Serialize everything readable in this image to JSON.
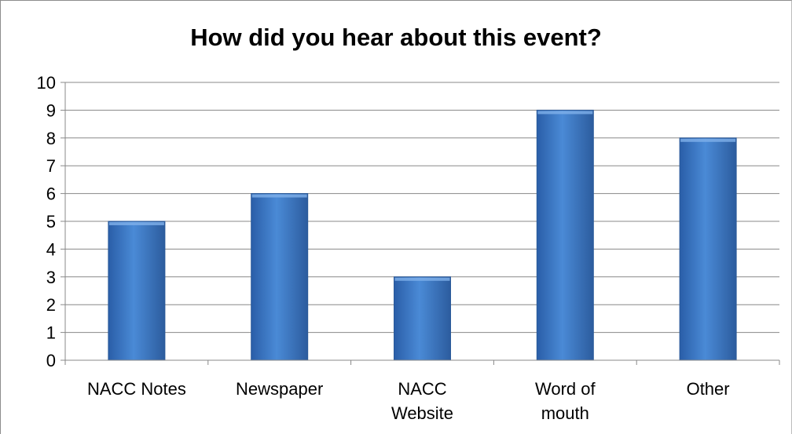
{
  "chart_data": {
    "type": "bar",
    "title": "How did you hear about this event?",
    "categories": [
      "NACC Notes",
      "Newspaper",
      "NACC Website",
      "Word of mouth",
      "Other"
    ],
    "category_lines": [
      [
        "NACC Notes"
      ],
      [
        "Newspaper"
      ],
      [
        "NACC",
        "Website"
      ],
      [
        "Word of",
        "mouth"
      ],
      [
        "Other"
      ]
    ],
    "values": [
      5,
      6,
      3,
      9,
      8
    ],
    "ylim": [
      0,
      10
    ],
    "yticks": [
      0,
      1,
      2,
      3,
      4,
      5,
      6,
      7,
      8,
      9,
      10
    ],
    "xlabel": "",
    "ylabel": "",
    "grid": true,
    "legend": "none",
    "bar_color": "#3a75c4",
    "gridline_color": "#888888"
  }
}
